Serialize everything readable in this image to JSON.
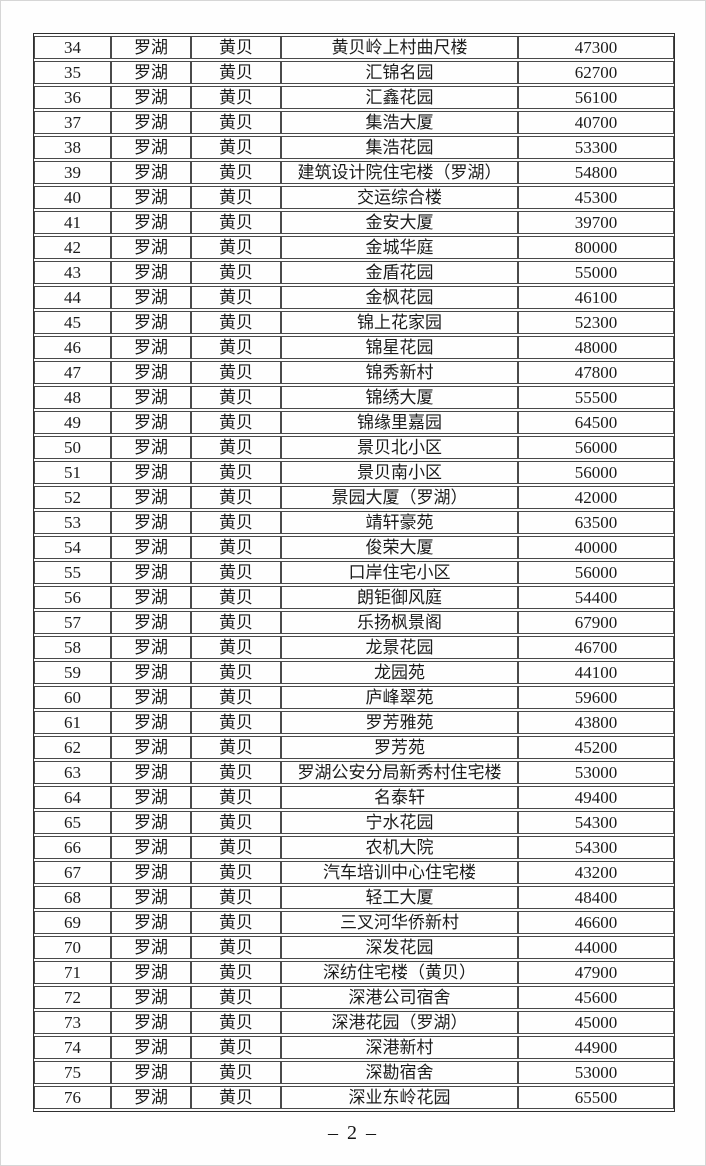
{
  "page": {
    "footer_page_number": "– 2 –",
    "colors": {
      "background": "#ffffff",
      "text": "#1b1b1b",
      "table_border": "#4a4a4a"
    }
  },
  "table": {
    "rows": [
      {
        "no": "34",
        "district": "罗湖",
        "subdistrict": "黄贝",
        "name": "黄贝岭上村曲尺楼",
        "price": "47300"
      },
      {
        "no": "35",
        "district": "罗湖",
        "subdistrict": "黄贝",
        "name": "汇锦名园",
        "price": "62700"
      },
      {
        "no": "36",
        "district": "罗湖",
        "subdistrict": "黄贝",
        "name": "汇鑫花园",
        "price": "56100"
      },
      {
        "no": "37",
        "district": "罗湖",
        "subdistrict": "黄贝",
        "name": "集浩大厦",
        "price": "40700"
      },
      {
        "no": "38",
        "district": "罗湖",
        "subdistrict": "黄贝",
        "name": "集浩花园",
        "price": "53300"
      },
      {
        "no": "39",
        "district": "罗湖",
        "subdistrict": "黄贝",
        "name": "建筑设计院住宅楼（罗湖）",
        "price": "54800"
      },
      {
        "no": "40",
        "district": "罗湖",
        "subdistrict": "黄贝",
        "name": "交运综合楼",
        "price": "45300"
      },
      {
        "no": "41",
        "district": "罗湖",
        "subdistrict": "黄贝",
        "name": "金安大厦",
        "price": "39700"
      },
      {
        "no": "42",
        "district": "罗湖",
        "subdistrict": "黄贝",
        "name": "金城华庭",
        "price": "80000"
      },
      {
        "no": "43",
        "district": "罗湖",
        "subdistrict": "黄贝",
        "name": "金盾花园",
        "price": "55000"
      },
      {
        "no": "44",
        "district": "罗湖",
        "subdistrict": "黄贝",
        "name": "金枫花园",
        "price": "46100"
      },
      {
        "no": "45",
        "district": "罗湖",
        "subdistrict": "黄贝",
        "name": "锦上花家园",
        "price": "52300"
      },
      {
        "no": "46",
        "district": "罗湖",
        "subdistrict": "黄贝",
        "name": "锦星花园",
        "price": "48000"
      },
      {
        "no": "47",
        "district": "罗湖",
        "subdistrict": "黄贝",
        "name": "锦秀新村",
        "price": "47800"
      },
      {
        "no": "48",
        "district": "罗湖",
        "subdistrict": "黄贝",
        "name": "锦绣大厦",
        "price": "55500"
      },
      {
        "no": "49",
        "district": "罗湖",
        "subdistrict": "黄贝",
        "name": "锦缘里嘉园",
        "price": "64500"
      },
      {
        "no": "50",
        "district": "罗湖",
        "subdistrict": "黄贝",
        "name": "景贝北小区",
        "price": "56000"
      },
      {
        "no": "51",
        "district": "罗湖",
        "subdistrict": "黄贝",
        "name": "景贝南小区",
        "price": "56000"
      },
      {
        "no": "52",
        "district": "罗湖",
        "subdistrict": "黄贝",
        "name": "景园大厦（罗湖）",
        "price": "42000"
      },
      {
        "no": "53",
        "district": "罗湖",
        "subdistrict": "黄贝",
        "name": "靖轩豪苑",
        "price": "63500"
      },
      {
        "no": "54",
        "district": "罗湖",
        "subdistrict": "黄贝",
        "name": "俊荣大厦",
        "price": "40000"
      },
      {
        "no": "55",
        "district": "罗湖",
        "subdistrict": "黄贝",
        "name": "口岸住宅小区",
        "price": "56000"
      },
      {
        "no": "56",
        "district": "罗湖",
        "subdistrict": "黄贝",
        "name": "朗钜御风庭",
        "price": "54400"
      },
      {
        "no": "57",
        "district": "罗湖",
        "subdistrict": "黄贝",
        "name": "乐扬枫景阁",
        "price": "67900"
      },
      {
        "no": "58",
        "district": "罗湖",
        "subdistrict": "黄贝",
        "name": "龙景花园",
        "price": "46700"
      },
      {
        "no": "59",
        "district": "罗湖",
        "subdistrict": "黄贝",
        "name": "龙园苑",
        "price": "44100"
      },
      {
        "no": "60",
        "district": "罗湖",
        "subdistrict": "黄贝",
        "name": "庐峰翠苑",
        "price": "59600"
      },
      {
        "no": "61",
        "district": "罗湖",
        "subdistrict": "黄贝",
        "name": "罗芳雅苑",
        "price": "43800"
      },
      {
        "no": "62",
        "district": "罗湖",
        "subdistrict": "黄贝",
        "name": "罗芳苑",
        "price": "45200"
      },
      {
        "no": "63",
        "district": "罗湖",
        "subdistrict": "黄贝",
        "name": "罗湖公安分局新秀村住宅楼",
        "price": "53000"
      },
      {
        "no": "64",
        "district": "罗湖",
        "subdistrict": "黄贝",
        "name": "名泰轩",
        "price": "49400"
      },
      {
        "no": "65",
        "district": "罗湖",
        "subdistrict": "黄贝",
        "name": "宁水花园",
        "price": "54300"
      },
      {
        "no": "66",
        "district": "罗湖",
        "subdistrict": "黄贝",
        "name": "农机大院",
        "price": "54300"
      },
      {
        "no": "67",
        "district": "罗湖",
        "subdistrict": "黄贝",
        "name": "汽车培训中心住宅楼",
        "price": "43200"
      },
      {
        "no": "68",
        "district": "罗湖",
        "subdistrict": "黄贝",
        "name": "轻工大厦",
        "price": "48400"
      },
      {
        "no": "69",
        "district": "罗湖",
        "subdistrict": "黄贝",
        "name": "三叉河华侨新村",
        "price": "46600"
      },
      {
        "no": "70",
        "district": "罗湖",
        "subdistrict": "黄贝",
        "name": "深发花园",
        "price": "44000"
      },
      {
        "no": "71",
        "district": "罗湖",
        "subdistrict": "黄贝",
        "name": "深纺住宅楼（黄贝）",
        "price": "47900"
      },
      {
        "no": "72",
        "district": "罗湖",
        "subdistrict": "黄贝",
        "name": "深港公司宿舍",
        "price": "45600"
      },
      {
        "no": "73",
        "district": "罗湖",
        "subdistrict": "黄贝",
        "name": "深港花园（罗湖）",
        "price": "45000"
      },
      {
        "no": "74",
        "district": "罗湖",
        "subdistrict": "黄贝",
        "name": "深港新村",
        "price": "44900"
      },
      {
        "no": "75",
        "district": "罗湖",
        "subdistrict": "黄贝",
        "name": "深勘宿舍",
        "price": "53000"
      },
      {
        "no": "76",
        "district": "罗湖",
        "subdistrict": "黄贝",
        "name": "深业东岭花园",
        "price": "65500"
      }
    ]
  }
}
